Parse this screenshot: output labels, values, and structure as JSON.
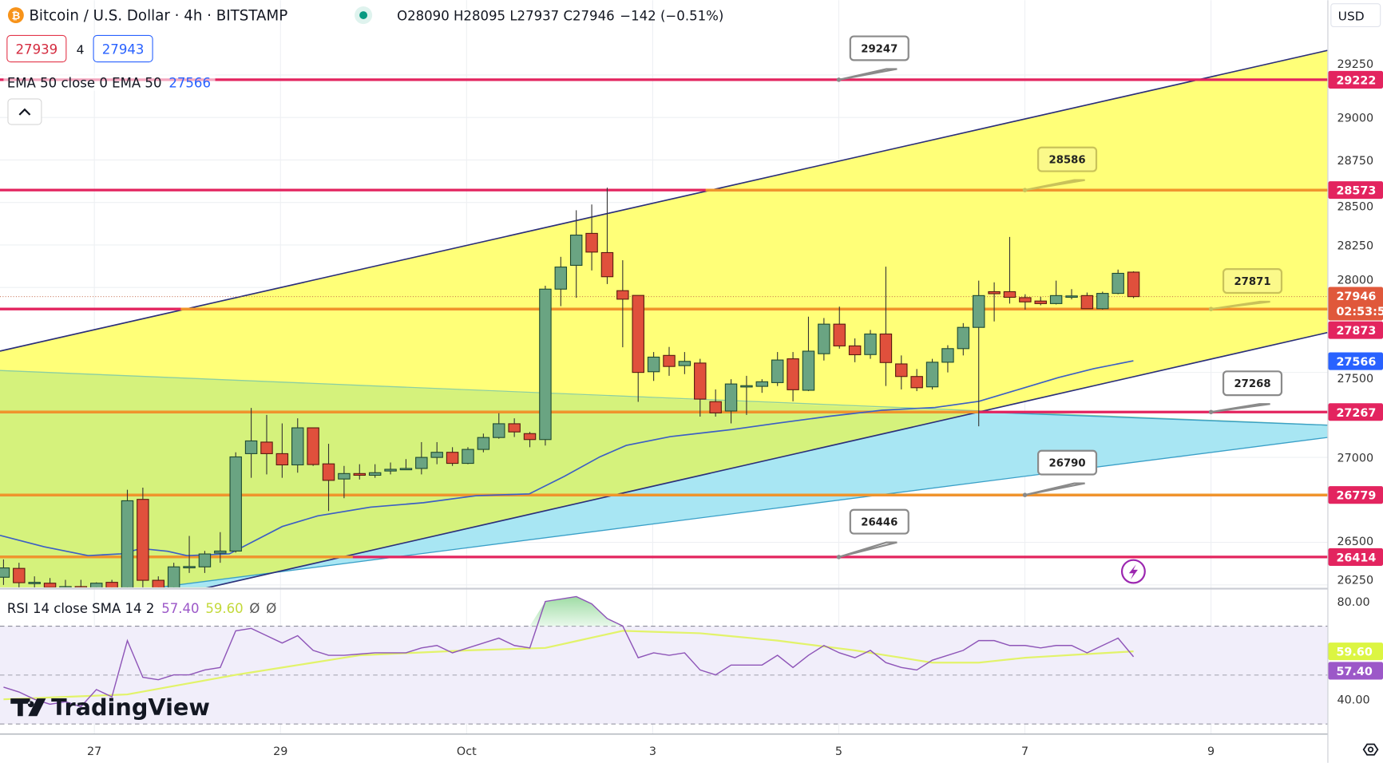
{
  "header": {
    "symbol": "Bitcoin / U.S. Dollar · 4h · BITSTAMP",
    "symbol_icon": "bitcoin-icon",
    "market_status_icon": "market-open-dot",
    "ohlc": "O28090 H28095 L27937 C27946",
    "change": "−142 (−0.51%)",
    "bid": "27939",
    "spread": "4",
    "ask": "27943",
    "ema_legend": "EMA 50 close 0 EMA 50",
    "ema_value": "27566",
    "collapse_icon": "chevron-up-icon"
  },
  "price_axis": {
    "currency": "USD",
    "ticks": [
      "29250",
      "29000",
      "28750",
      "28500",
      "28250",
      "28000",
      "27500",
      "27000",
      "26500",
      "26250"
    ],
    "tick_values": [
      29250,
      29000,
      28750,
      28500,
      28250,
      28000,
      27500,
      27000,
      26500,
      26250
    ],
    "badges": [
      {
        "label": "29222",
        "value": 29222,
        "color": "#e3245f"
      },
      {
        "label": "28573",
        "value": 28573,
        "color": "#e3245f"
      },
      {
        "label": "27873",
        "value": 27873,
        "color": "#e3245f"
      },
      {
        "label": "27566",
        "value": 27566,
        "color": "#2962ff"
      },
      {
        "label": "27267",
        "value": 27267,
        "color": "#e3245f"
      },
      {
        "label": "26779",
        "value": 26779,
        "color": "#e3245f"
      },
      {
        "label": "26414",
        "value": 26414,
        "color": "#e3245f"
      }
    ],
    "current_price": "27946",
    "countdown": "02:53:5",
    "current_color": "#e0583b"
  },
  "time_axis": {
    "labels": [
      "27",
      "29",
      "Oct",
      "3",
      "5",
      "7",
      "9"
    ]
  },
  "levels": [
    29222,
    28573,
    27873,
    27267,
    26779,
    26414
  ],
  "callouts": [
    {
      "label": "29247",
      "value": 29222,
      "style": "white"
    },
    {
      "label": "28586",
      "value": 28573,
      "style": "yellow"
    },
    {
      "label": "27871",
      "value": 27873,
      "style": "yellow"
    },
    {
      "label": "27268",
      "value": 27267,
      "style": "white"
    },
    {
      "label": "26790",
      "value": 26779,
      "style": "white"
    },
    {
      "label": "26446",
      "value": 26414,
      "style": "white"
    }
  ],
  "rsi": {
    "legend": "RSI 14 close SMA 14 2",
    "rsi_value": "57.40",
    "sma_value": "59.60",
    "extra1": "Ø",
    "extra2": "Ø",
    "ticks": [
      "80.00",
      "40.00"
    ],
    "rsi_color": "#9c58c8",
    "sma_color": "#dcf542"
  },
  "watermark": "TradingView",
  "settings_icon": "settings-icon",
  "alert_icon": "lightning-icon",
  "chart_data": {
    "type": "candlestick",
    "title": "Bitcoin / U.S. Dollar · 4h · BITSTAMP",
    "ylim": [
      26200,
      29300
    ],
    "ohlc": [
      [
        26295,
        26400,
        26250,
        26350
      ],
      [
        26347,
        26380,
        26200,
        26263
      ],
      [
        26263,
        26300,
        26230,
        26265
      ],
      [
        26260,
        26290,
        26150,
        26235
      ],
      [
        26237,
        26280,
        26150,
        26240
      ],
      [
        26240,
        26280,
        26150,
        26200
      ],
      [
        26180,
        26265,
        26150,
        26260
      ],
      [
        26265,
        26280,
        26150,
        26180
      ],
      [
        26180,
        26810,
        26150,
        26745
      ],
      [
        26753,
        26822,
        26200,
        26277
      ],
      [
        26277,
        26300,
        26150,
        26230
      ],
      [
        26230,
        26380,
        26150,
        26356
      ],
      [
        26356,
        26538,
        26320,
        26358
      ],
      [
        26356,
        26450,
        26320,
        26432
      ],
      [
        26437,
        26560,
        26380,
        26449
      ],
      [
        26449,
        27030,
        26440,
        27003
      ],
      [
        27022,
        27291,
        26880,
        27097
      ],
      [
        27090,
        27250,
        26900,
        27022
      ],
      [
        27022,
        27200,
        26880,
        26956
      ],
      [
        26956,
        27230,
        26910,
        27174
      ],
      [
        27174,
        27174,
        26950,
        26958
      ],
      [
        26962,
        27080,
        26685,
        26865
      ],
      [
        26873,
        26950,
        26760,
        26905
      ],
      [
        26905,
        26960,
        26870,
        26895
      ],
      [
        26895,
        26960,
        26880,
        26910
      ],
      [
        26920,
        26970,
        26900,
        26930
      ],
      [
        26935,
        26990,
        26930,
        26935
      ],
      [
        26935,
        27090,
        26900,
        27000
      ],
      [
        27000,
        27090,
        26960,
        27030
      ],
      [
        27030,
        27060,
        26950,
        26965
      ],
      [
        26965,
        27060,
        26960,
        27047
      ],
      [
        27047,
        27140,
        27030,
        27117
      ],
      [
        27117,
        27260,
        27110,
        27198
      ],
      [
        27198,
        27230,
        27120,
        27150
      ],
      [
        27140,
        27150,
        27060,
        27105
      ],
      [
        27105,
        28010,
        27070,
        27990
      ],
      [
        27990,
        28180,
        27890,
        28120
      ],
      [
        28130,
        28454,
        27939,
        28308
      ],
      [
        28318,
        28488,
        28100,
        28208
      ],
      [
        28205,
        28587,
        28020,
        28063
      ],
      [
        27981,
        28160,
        27648,
        27931
      ],
      [
        27953,
        27953,
        27327,
        27500
      ],
      [
        27504,
        27620,
        27450,
        27590
      ],
      [
        27600,
        27650,
        27480,
        27535
      ],
      [
        27540,
        27620,
        27490,
        27565
      ],
      [
        27555,
        27580,
        27240,
        27343
      ],
      [
        27328,
        27400,
        27240,
        27262
      ],
      [
        27273,
        27460,
        27200,
        27432
      ],
      [
        27422,
        27480,
        27250,
        27422
      ],
      [
        27418,
        27460,
        27380,
        27445
      ],
      [
        27440,
        27620,
        27420,
        27573
      ],
      [
        27580,
        27620,
        27330,
        27398
      ],
      [
        27395,
        27828,
        27390,
        27625
      ],
      [
        27610,
        27820,
        27570,
        27784
      ],
      [
        27784,
        27887,
        27640,
        27656
      ],
      [
        27656,
        27700,
        27560,
        27604
      ],
      [
        27605,
        27750,
        27580,
        27726
      ],
      [
        27726,
        28122,
        27420,
        27558
      ],
      [
        27550,
        27600,
        27400,
        27476
      ],
      [
        27476,
        27520,
        27390,
        27410
      ],
      [
        27415,
        27580,
        27400,
        27560
      ],
      [
        27560,
        27660,
        27500,
        27640
      ],
      [
        27640,
        27790,
        27600,
        27765
      ],
      [
        27765,
        28040,
        27183,
        27952
      ],
      [
        27975,
        28030,
        27800,
        27963
      ],
      [
        27975,
        28297,
        27905,
        27942
      ],
      [
        27940,
        27960,
        27870,
        27915
      ],
      [
        27920,
        27945,
        27895,
        27905
      ],
      [
        27905,
        28040,
        27900,
        27952
      ],
      [
        27950,
        27990,
        27930,
        27950
      ],
      [
        27952,
        27970,
        27875,
        27875
      ],
      [
        27875,
        27975,
        27870,
        27965
      ],
      [
        27965,
        28105,
        27960,
        28083
      ],
      [
        28090,
        28095,
        27937,
        27946
      ]
    ],
    "rsi": [
      45,
      43,
      40,
      38,
      39,
      37,
      44,
      41,
      64,
      49,
      48,
      50,
      50,
      52,
      53,
      68,
      69,
      66,
      63,
      66,
      60,
      58,
      58,
      58.5,
      59,
      59,
      59,
      61,
      62,
      59,
      61,
      63,
      65,
      62,
      61,
      80,
      81,
      82,
      79,
      73,
      70,
      57,
      59,
      58,
      59,
      52,
      50,
      54,
      54,
      54,
      58,
      53,
      58,
      62,
      59,
      57,
      60,
      55,
      53,
      52,
      56,
      58,
      60,
      64,
      64,
      62,
      62,
      61,
      62,
      62,
      59,
      62,
      65,
      57.4
    ],
    "rsi_sma_keypoints": [
      [
        0,
        40
      ],
      [
        8,
        42
      ],
      [
        15,
        50
      ],
      [
        23,
        58
      ],
      [
        30,
        60
      ],
      [
        35,
        61
      ],
      [
        40,
        68
      ],
      [
        45,
        67
      ],
      [
        50,
        64
      ],
      [
        55,
        60
      ],
      [
        60,
        55
      ],
      [
        63,
        55
      ],
      [
        66,
        57
      ],
      [
        70,
        58.5
      ],
      [
        73,
        59.6
      ]
    ],
    "rsi_ylim": [
      20,
      85
    ]
  }
}
